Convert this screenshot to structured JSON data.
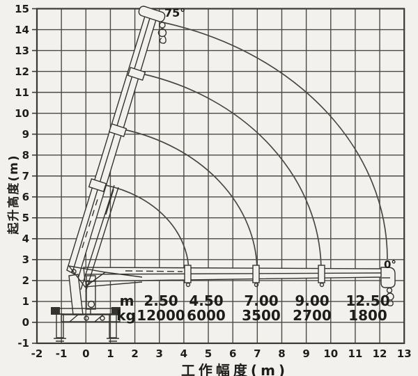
{
  "chart_data": {
    "type": "line",
    "title": "",
    "xlabel": "工作幅度(m)",
    "ylabel": "起升高度(m)",
    "xlim": [
      -2,
      13
    ],
    "ylim": [
      -1,
      15
    ],
    "x_ticks": [
      -2,
      -1,
      0,
      1,
      2,
      3,
      4,
      5,
      6,
      7,
      8,
      9,
      10,
      11,
      12,
      13
    ],
    "y_ticks": [
      15,
      14,
      13,
      12,
      11,
      10,
      9,
      8,
      7,
      6,
      5,
      4,
      3,
      2,
      1,
      0,
      -1
    ],
    "grid": true,
    "legend": "none",
    "angle_labels": {
      "max": "75°",
      "min": "0°"
    },
    "description": "Truck-mounted crane working range diagram: boom shown at 75° (raised) and 0° (horizontal), with four boom-tip arcs for the telescoping sections",
    "boom_pivot_m": [
      -0.5,
      2.5
    ],
    "series": [
      {
        "name": "boom tip arc, section 1",
        "radius_m": 4.6,
        "start_xy": [
          0.8,
          6.6
        ],
        "end_xy": [
          4.2,
          2.4
        ],
        "sweep_deg": [
          75,
          0
        ]
      },
      {
        "name": "boom tip arc, section 2",
        "radius_m": 7.0,
        "start_xy": [
          1.6,
          9.2
        ],
        "end_xy": [
          7.0,
          2.4
        ],
        "sweep_deg": [
          75,
          0
        ]
      },
      {
        "name": "boom tip arc, section 3",
        "radius_m": 9.7,
        "start_xy": [
          2.3,
          11.9
        ],
        "end_xy": [
          9.6,
          2.5
        ],
        "sweep_deg": [
          75,
          0
        ]
      },
      {
        "name": "boom tip arc, section 4",
        "radius_m": 12.5,
        "start_xy": [
          3.1,
          14.4
        ],
        "end_xy": [
          12.3,
          3.0
        ],
        "sweep_deg": [
          75,
          0
        ]
      }
    ],
    "load_table": {
      "row_labels": [
        "m",
        "kg"
      ],
      "radius_m": [
        "2.50",
        "4.50",
        "7.00",
        "9.00",
        "12.50"
      ],
      "load_kg": [
        "12000",
        "6000",
        "3500",
        "2700",
        "1800"
      ]
    }
  }
}
